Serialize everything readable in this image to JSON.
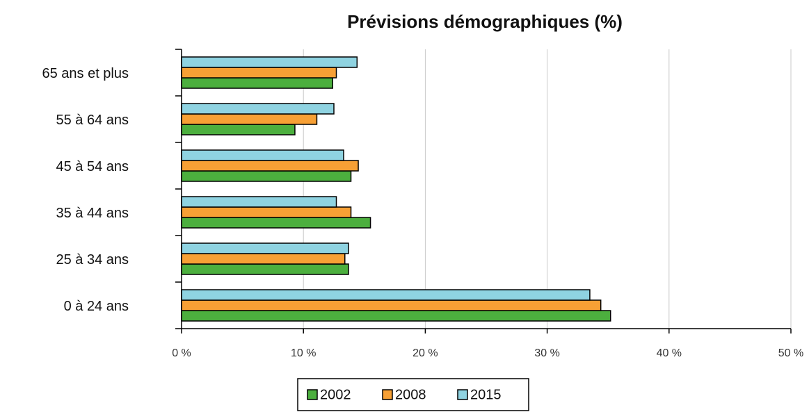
{
  "chart_data": {
    "type": "barh",
    "title": "Prévisions démographiques (%)",
    "categories": [
      "0 à 24 ans",
      "25 à 34 ans",
      "35 à 44 ans",
      "45 à 54 ans",
      "55 à 64 ans",
      "65 ans et plus"
    ],
    "series": [
      {
        "name": "2002",
        "color": "#4caf3e",
        "values": [
          35.2,
          13.7,
          15.5,
          13.9,
          9.3,
          12.4
        ]
      },
      {
        "name": "2008",
        "color": "#f7a035",
        "values": [
          34.4,
          13.4,
          13.9,
          14.5,
          11.1,
          12.7
        ]
      },
      {
        "name": "2015",
        "color": "#8fd3e1",
        "values": [
          33.5,
          13.7,
          12.7,
          13.3,
          12.5,
          14.4
        ]
      }
    ],
    "xlim": [
      0,
      50
    ],
    "xticks": [
      {
        "value": 0,
        "label": "0 %"
      },
      {
        "value": 10,
        "label": "10 %"
      },
      {
        "value": 20,
        "label": "20 %"
      },
      {
        "value": 30,
        "label": "30 %"
      },
      {
        "value": 40,
        "label": "40 %"
      },
      {
        "value": 50,
        "label": "50 %"
      }
    ],
    "grid": true,
    "legend": "bottom"
  }
}
